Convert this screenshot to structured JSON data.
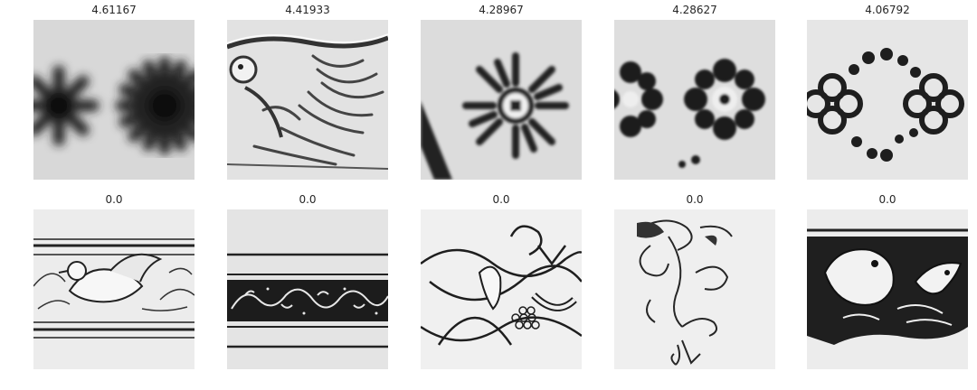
{
  "panels": [
    {
      "title": "4.61167",
      "icon": "blurred-asterisk-pair"
    },
    {
      "title": "4.41933",
      "icon": "creature-relief"
    },
    {
      "title": "4.28967",
      "icon": "sunburst-rosette"
    },
    {
      "title": "4.28627",
      "icon": "flower-rosette-pair"
    },
    {
      "title": "4.06792",
      "icon": "quatrefoil-dots"
    },
    {
      "title": "0.0",
      "icon": "bird-border-band"
    },
    {
      "title": "0.0",
      "icon": "scroll-border-band"
    },
    {
      "title": "0.0",
      "icon": "interlace-knot"
    },
    {
      "title": "0.0",
      "icon": "acanthus-flourish"
    },
    {
      "title": "0.0",
      "icon": "beast-frieze"
    }
  ]
}
